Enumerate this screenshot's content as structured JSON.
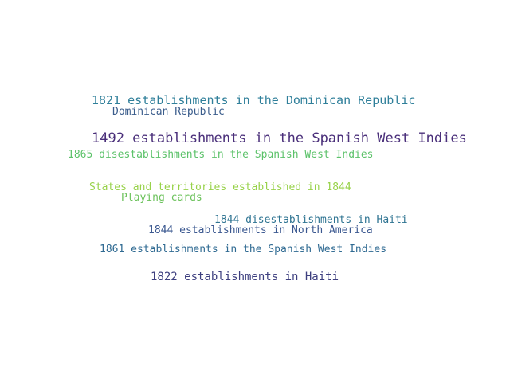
{
  "words": [
    {
      "text": "1821 establishments in the Dominican Republic",
      "color": "#2f7f9a"
    },
    {
      "text": "Dominican Republic",
      "color": "#3b5d8c"
    },
    {
      "text": "1492 establishments in the Spanish West Indies",
      "color": "#4a2f7a"
    },
    {
      "text": "1865 disestablishments in the Spanish West Indies",
      "color": "#5cc26a"
    },
    {
      "text": "States and territories established in 1844",
      "color": "#98d24a"
    },
    {
      "text": "Playing cards",
      "color": "#6cc25c"
    },
    {
      "text": "1844 disestablishments in Haiti",
      "color": "#2f7492"
    },
    {
      "text": "1844 establishments in North America",
      "color": "#3b5890"
    },
    {
      "text": "1861 establishments in the Spanish West Indies",
      "color": "#2f6a92"
    },
    {
      "text": "1822 establishments in Haiti",
      "color": "#3d3f7f"
    }
  ]
}
